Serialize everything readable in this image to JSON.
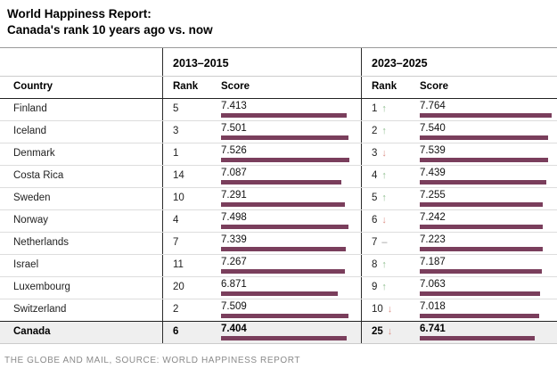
{
  "title": {
    "line1": "World Happiness Report:",
    "line2": "Canada's rank 10 years ago vs. now"
  },
  "table": {
    "period1_header": "2013–2015",
    "period2_header": "2023–2025",
    "col_country": "Country",
    "col_rank": "Rank",
    "col_score": "Score",
    "max_score": 7.764,
    "trend_glyphs": {
      "up": "↑",
      "down": "↓",
      "flat": "–"
    },
    "rows": [
      {
        "country": "Finland",
        "rank1": "5",
        "score1": "7.413",
        "rank2": "1",
        "trend": "up",
        "score2": "7.764",
        "highlight": false
      },
      {
        "country": "Iceland",
        "rank1": "3",
        "score1": "7.501",
        "rank2": "2",
        "trend": "up",
        "score2": "7.540",
        "highlight": false
      },
      {
        "country": "Denmark",
        "rank1": "1",
        "score1": "7.526",
        "rank2": "3",
        "trend": "down",
        "score2": "7.539",
        "highlight": false
      },
      {
        "country": "Costa Rica",
        "rank1": "14",
        "score1": "7.087",
        "rank2": "4",
        "trend": "up",
        "score2": "7.439",
        "highlight": false
      },
      {
        "country": "Sweden",
        "rank1": "10",
        "score1": "7.291",
        "rank2": "5",
        "trend": "up",
        "score2": "7.255",
        "highlight": false
      },
      {
        "country": "Norway",
        "rank1": "4",
        "score1": "7.498",
        "rank2": "6",
        "trend": "down",
        "score2": "7.242",
        "highlight": false
      },
      {
        "country": "Netherlands",
        "rank1": "7",
        "score1": "7.339",
        "rank2": "7",
        "trend": "flat",
        "score2": "7.223",
        "highlight": false
      },
      {
        "country": "Israel",
        "rank1": "11",
        "score1": "7.267",
        "rank2": "8",
        "trend": "up",
        "score2": "7.187",
        "highlight": false
      },
      {
        "country": "Luxembourg",
        "rank1": "20",
        "score1": "6.871",
        "rank2": "9",
        "trend": "up",
        "score2": "7.063",
        "highlight": false
      },
      {
        "country": "Switzerland",
        "rank1": "2",
        "score1": "7.509",
        "rank2": "10",
        "trend": "down",
        "score2": "7.018",
        "highlight": false
      },
      {
        "country": "Canada",
        "rank1": "6",
        "score1": "7.404",
        "rank2": "25",
        "trend": "down",
        "score2": "6.741",
        "highlight": true
      }
    ]
  },
  "footer": {
    "credit": "THE GLOBE AND MAIL, SOURCE: WORLD HAPPINESS REPORT"
  },
  "colors": {
    "bar": "#7a3e5c",
    "trend_up": "#8fbe8f",
    "trend_down": "#db9289",
    "trend_flat": "#999999",
    "highlight_bg": "#efefef"
  },
  "chart_data": {
    "type": "table",
    "title": "World Happiness Report: Canada's rank 10 years ago vs. now",
    "columns": [
      "Country",
      "Rank 2013–2015",
      "Score 2013–2015",
      "Rank 2023–2025",
      "Score 2023–2025",
      "Rank trend"
    ],
    "rows": [
      [
        "Finland",
        5,
        7.413,
        1,
        7.764,
        "up"
      ],
      [
        "Iceland",
        3,
        7.501,
        2,
        7.54,
        "up"
      ],
      [
        "Denmark",
        1,
        7.526,
        3,
        7.539,
        "down"
      ],
      [
        "Costa Rica",
        14,
        7.087,
        4,
        7.439,
        "up"
      ],
      [
        "Sweden",
        10,
        7.291,
        5,
        7.255,
        "up"
      ],
      [
        "Norway",
        4,
        7.498,
        6,
        7.242,
        "down"
      ],
      [
        "Netherlands",
        7,
        7.339,
        7,
        7.223,
        "flat"
      ],
      [
        "Israel",
        11,
        7.267,
        8,
        7.187,
        "up"
      ],
      [
        "Luxembourg",
        20,
        6.871,
        9,
        7.063,
        "up"
      ],
      [
        "Switzerland",
        2,
        7.509,
        10,
        7.018,
        "down"
      ],
      [
        "Canada",
        6,
        7.404,
        25,
        6.741,
        "down"
      ]
    ],
    "bar_scale_max": 7.764,
    "bar_fields": [
      "Score 2013–2015",
      "Score 2023–2025"
    ],
    "source": "THE GLOBE AND MAIL, SOURCE: WORLD HAPPINESS REPORT"
  }
}
